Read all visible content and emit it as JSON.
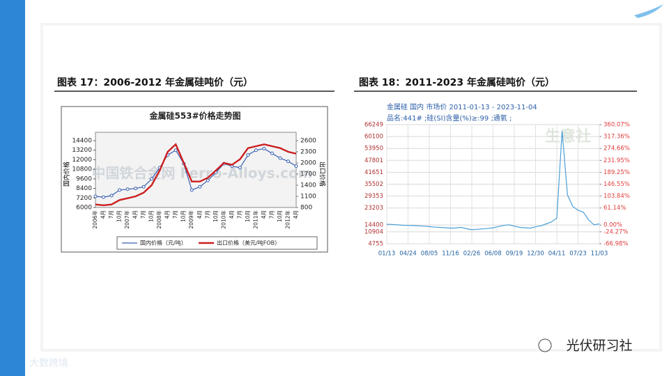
{
  "slide": {
    "heading_left": "图表 17：2006-2012 年金属硅吨价（元）",
    "heading_right": "图表 18：2011-2023 年金属硅吨价（元）",
    "footer_brand": "光伏研习社",
    "corner_mark": "大数跨境"
  },
  "chart_data": [
    {
      "type": "line",
      "title": "金属硅553#价格走势图",
      "watermark": "中国铁合金网 Ferro-Alloys.com",
      "ylabel": "国内价格",
      "y2label": "出口价格",
      "grid": false,
      "legend": "bottom",
      "categories": [
        "2006年",
        "4月",
        "7月",
        "10月",
        "2007年",
        "4月",
        "7月",
        "10月",
        "2008年",
        "4月",
        "7月",
        "10月",
        "2009年",
        "4月",
        "7月",
        "10月",
        "2010年",
        "4月",
        "7月",
        "10月",
        "2011年",
        "4月",
        "7月",
        "10月",
        "2012年",
        "4月"
      ],
      "series": [
        {
          "name": "国内价格（元/吨）",
          "color": "#3a5fb0",
          "values": [
            7400,
            7300,
            7500,
            8200,
            8300,
            8400,
            8600,
            9600,
            11000,
            12600,
            13200,
            11500,
            8200,
            8600,
            9400,
            10400,
            11500,
            11200,
            11000,
            12600,
            13200,
            13400,
            12800,
            12200,
            11800,
            11200
          ]
        },
        {
          "name": "出口价格（美元/吨FOB）",
          "color": "#cc1f1f",
          "axis": "y2",
          "values": [
            880,
            860,
            880,
            1000,
            1050,
            1100,
            1200,
            1400,
            1800,
            2300,
            2500,
            2000,
            1500,
            1500,
            1600,
            1800,
            2000,
            1950,
            2100,
            2400,
            2450,
            2500,
            2450,
            2400,
            2300,
            2250
          ]
        }
      ],
      "ylim": [
        6000,
        14400
      ],
      "yticks": [
        6000,
        7200,
        8400,
        9600,
        10800,
        12000,
        13200,
        14400
      ],
      "y2lim": [
        800,
        2600
      ],
      "y2ticks": [
        800,
        1100,
        1400,
        1700,
        2000,
        2300,
        2600
      ]
    },
    {
      "type": "line",
      "title": "金属硅 国内 市场价 2011-01-13 - 2023-11-04",
      "subtitle": "品名:441# ;硅(SI)含量(%)≥:99 ;通氧 ;",
      "watermark": "生意社",
      "grid": true,
      "color": "#4a9fd8",
      "categories": [
        "01/13",
        null,
        null,
        null,
        "04/24",
        null,
        null,
        null,
        "08/05",
        null,
        null,
        null,
        "11/16",
        null,
        null,
        null,
        "02/26",
        null,
        null,
        null,
        "06/08",
        null,
        null,
        null,
        "09/19",
        null,
        null,
        null,
        "12/30",
        null,
        null,
        null,
        "04/11",
        null,
        null,
        null,
        "07/23",
        null,
        null,
        null,
        "11/03"
      ],
      "values": [
        14800,
        14700,
        14500,
        14300,
        14200,
        14100,
        14000,
        13800,
        13600,
        13300,
        13200,
        13000,
        12800,
        12900,
        13200,
        12500,
        12000,
        12200,
        12400,
        12600,
        13000,
        13600,
        14200,
        14500,
        13800,
        13200,
        13000,
        12800,
        13500,
        14000,
        15000,
        16000,
        18000,
        63000,
        30000,
        24000,
        22000,
        21000,
        17000,
        14500,
        15000
      ],
      "ylim": [
        4755,
        66249
      ],
      "yticks": [
        66249,
        60100,
        53950,
        47801,
        41651,
        35502,
        29353,
        23203,
        14400,
        10904,
        4755
      ],
      "y2lim": [
        -66.98,
        360.07
      ],
      "y2ticks": [
        {
          "value": 360.07,
          "label": "360.07%"
        },
        {
          "value": 317.36,
          "label": "317.36%"
        },
        {
          "value": 274.66,
          "label": "274.66%"
        },
        {
          "value": 231.95,
          "label": "231.95%"
        },
        {
          "value": 189.25,
          "label": "189.25%"
        },
        {
          "value": 146.55,
          "label": "146.55%"
        },
        {
          "value": 103.84,
          "label": "103.84%"
        },
        {
          "value": 61.14,
          "label": "61.14%"
        },
        {
          "value": 0,
          "label": "0.00%"
        },
        {
          "value": -24.27,
          "label": "-24.27%"
        },
        {
          "value": -66.98,
          "label": "-66.98%"
        }
      ]
    }
  ]
}
